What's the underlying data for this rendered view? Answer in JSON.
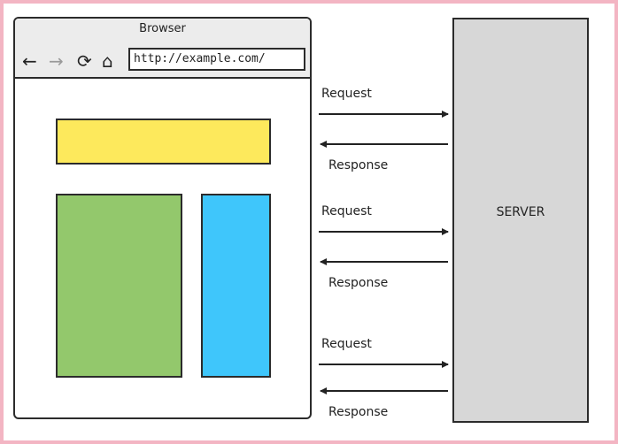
{
  "browser": {
    "title": "Browser",
    "url": "http://example.com/",
    "nav_icons": {
      "back": "←",
      "forward": "→",
      "reload": "⟳",
      "home": "⌂"
    }
  },
  "server": {
    "label": "SERVER"
  },
  "exchanges": [
    {
      "request_label": "Request",
      "response_label": "Response"
    },
    {
      "request_label": "Request",
      "response_label": "Response"
    },
    {
      "request_label": "Request",
      "response_label": "Response"
    }
  ],
  "colors": {
    "header_block": "#fde95c",
    "main_block": "#93c86c",
    "side_block": "#3fc6fb",
    "server_fill": "#d7d7d7",
    "frame": "#f3b5c3"
  }
}
